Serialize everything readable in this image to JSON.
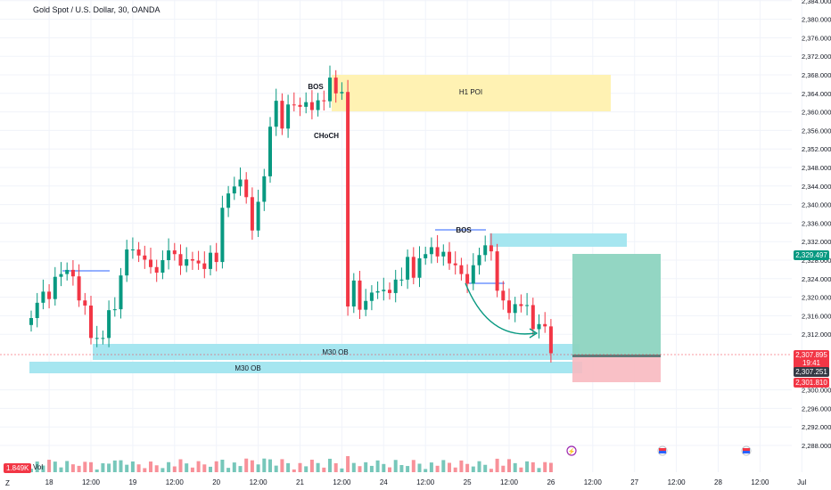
{
  "header": {
    "title": "Gold Spot / U.S. Dollar, 30, OANDA"
  },
  "price_axis": {
    "ticks": [
      "2,384.000",
      "2,380.000",
      "2,376.000",
      "2,372.000",
      "2,368.000",
      "2,364.000",
      "2,360.000",
      "2,356.000",
      "2,352.000",
      "2,348.000",
      "2,344.000",
      "2,340.000",
      "2,336.000",
      "2,332.000",
      "2,328.000",
      "2,324.000",
      "2,320.000",
      "2,316.000",
      "2,312.000",
      "2,300.000",
      "2,296.000",
      "2,292.000",
      "2,288.000"
    ],
    "tick_values": [
      2384,
      2380,
      2376,
      2372,
      2368,
      2364,
      2360,
      2356,
      2352,
      2348,
      2344,
      2340,
      2336,
      2332,
      2328,
      2324,
      2320,
      2316,
      2312,
      2300,
      2296,
      2292,
      2288
    ]
  },
  "time_axis": {
    "ticks": [
      "18",
      "12:00",
      "19",
      "12:00",
      "20",
      "12:00",
      "21",
      "12:00",
      "24",
      "12:00",
      "25",
      "12:00",
      "26",
      "12:00",
      "27",
      "12:00",
      "28",
      "12:00",
      "Jul"
    ],
    "tick_index": [
      3,
      10,
      17,
      24,
      31,
      38,
      45,
      52,
      59,
      66,
      73,
      80,
      87,
      94,
      101,
      108,
      115,
      122,
      129
    ],
    "corner_label": "Z"
  },
  "price_labels": {
    "target": "2,329.497",
    "current": "2,307.895",
    "countdown": "19:41",
    "entry": "2,307.251",
    "stop": "2,301.810"
  },
  "annotations": {
    "h1_poi": "H1 POI",
    "bos_top": "BOS",
    "choch": "CHoCH",
    "bos_mid": "BOS",
    "m30_ob_1": "M30 OB",
    "m30_ob_2": "M30 OB"
  },
  "volume": {
    "badge": "1.849K",
    "label": "Vol"
  },
  "colors": {
    "up": "#089981",
    "down": "#f23645",
    "poi": "#fff2b3",
    "ob": "#a6e6f0",
    "target_zone": "#8dd4c0",
    "stop_zone": "#f8b9c0",
    "grid": "#f0f3fa",
    "axis_text": "#131722"
  },
  "chart_data": {
    "type": "candlestick",
    "title": "Gold Spot / U.S. Dollar, 30, OANDA",
    "x_start": "Jun 17",
    "ylim": [
      2286,
      2386
    ],
    "close": [
      2315.5,
      2318.8,
      2321.2,
      2319.6,
      2324.4,
      2325.0,
      2325.9,
      2324.5,
      2319.3,
      2318.2,
      2311.2,
      2311.2,
      2311.2,
      2317.2,
      2317.4,
      2324.7,
      2330.3,
      2330.3,
      2329.0,
      2328.1,
      2326.5,
      2325.3,
      2328.0,
      2330.1,
      2329.3,
      2326.8,
      2328.2,
      2327.9,
      2327.3,
      2326.1,
      2329.6,
      2327.6,
      2339.3,
      2342.4,
      2343.9,
      2345.4,
      2341.6,
      2334.4,
      2340.6,
      2346.1,
      2356.8,
      2362.4,
      2356.4,
      2361.6,
      2361.5,
      2361.1,
      2362.1,
      2360.4,
      2362.5,
      2362.3,
      2367.4,
      2364.0,
      2364.3,
      2318.0,
      2323.6,
      2317.3,
      2319.2,
      2321.0,
      2321.3,
      2321.6,
      2320.9,
      2323.8,
      2323.8,
      2328.7,
      2324.2,
      2328.4,
      2329.3,
      2330.8,
      2328.8,
      2329.8,
      2327.3,
      2326.9,
      2325.0,
      2322.9,
      2326.9,
      2329.1,
      2331.2,
      2329.9,
      2321.4,
      2319.3,
      2316.6,
      2318.5,
      2318.1,
      2318.3,
      2313.1,
      2314.2,
      2313.7,
      2307.9
    ]
  }
}
